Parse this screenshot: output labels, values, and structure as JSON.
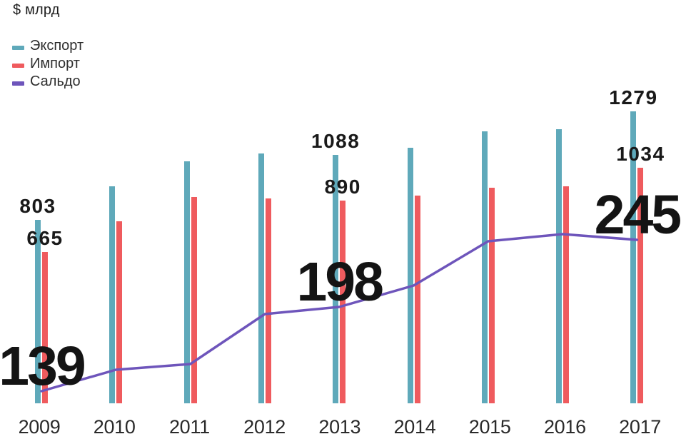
{
  "title": "$ млрд",
  "legend": [
    {
      "label": "Экспорт",
      "color": "#5FA9BA"
    },
    {
      "label": "Импорт",
      "color": "#EF5B5E"
    },
    {
      "label": "Сальдо",
      "color": "#6E55BB"
    }
  ],
  "chart_data": {
    "type": "bar",
    "subtype": "grouped bars with overlaid line (line drawn on exaggerated scale)",
    "title": "$ млрд",
    "categories": [
      "2009",
      "2010",
      "2011",
      "2012",
      "2013",
      "2014",
      "2015",
      "2016",
      "2017"
    ],
    "series": [
      {
        "key": "export",
        "name": "Экспорт",
        "type": "bar",
        "color": "#5FA9BA",
        "values": [
          803,
          950,
          1062,
          1095,
          1088,
          1122,
          1194,
          1203,
          1279
        ]
      },
      {
        "key": "import",
        "name": "Импорт",
        "type": "bar",
        "color": "#EF5B5E",
        "values": [
          665,
          797,
          903,
          897,
          890,
          912,
          945,
          953,
          1034
        ]
      },
      {
        "key": "saldo",
        "name": "Сальдо",
        "type": "line",
        "color": "#6E55BB",
        "values": [
          139,
          154,
          158,
          193,
          198,
          213,
          244,
          249,
          245
        ]
      }
    ],
    "value_axis_visible": false,
    "gridlines": false,
    "legend_position": "top-left",
    "labeled_points_note": "only 2009, 2013 and 2017 carry data labels"
  },
  "labels": {
    "bar_values": [
      {
        "year": "2009",
        "series": "export",
        "text": "803"
      },
      {
        "year": "2009",
        "series": "import",
        "text": "665"
      },
      {
        "year": "2013",
        "series": "export",
        "text": "1088"
      },
      {
        "year": "2013",
        "series": "import",
        "text": "890"
      },
      {
        "year": "2017",
        "series": "export",
        "text": "1279"
      },
      {
        "year": "2017",
        "series": "import",
        "text": "1034"
      }
    ],
    "saldo_values": [
      {
        "year": "2009",
        "text": "139"
      },
      {
        "year": "2013",
        "text": "198"
      },
      {
        "year": "2017",
        "text": "245"
      }
    ]
  }
}
